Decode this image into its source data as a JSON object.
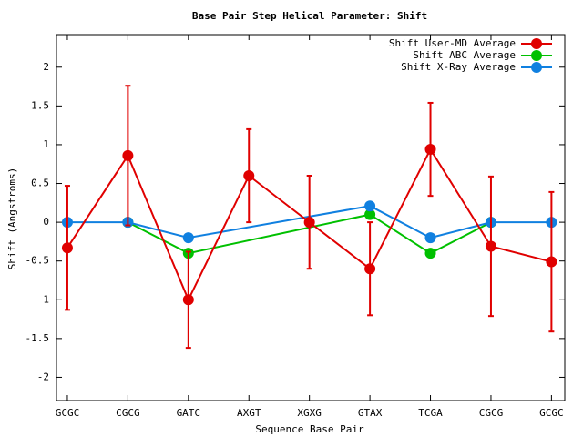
{
  "chart_data": {
    "type": "line",
    "title": "Base Pair Step Helical Parameter: Shift",
    "xlabel": "Sequence Base Pair",
    "ylabel": "Shift (Angstroms)",
    "xlim": [
      -0.18,
      8.22
    ],
    "xticks": [
      {
        "value": 0,
        "label": "GCGC"
      },
      {
        "value": 1,
        "label": "CGCG"
      },
      {
        "value": 2,
        "label": "GATC"
      },
      {
        "value": 3,
        "label": "AXGT"
      },
      {
        "value": 4,
        "label": "XGXG"
      },
      {
        "value": 5,
        "label": "GTAX"
      },
      {
        "value": 6,
        "label": "TCGA"
      },
      {
        "value": 7,
        "label": "CGCG"
      },
      {
        "value": 8,
        "label": "GCGC"
      }
    ],
    "ylim": [
      -2.3,
      2.42
    ],
    "yticks": [
      -2,
      -1.5,
      -1,
      -0.5,
      0,
      0.5,
      1,
      1.5,
      2
    ],
    "legend": "top-right",
    "series": [
      {
        "name": "Shift User-MD Average",
        "color": "#e00000",
        "x": [
          0,
          1,
          2,
          3,
          4,
          5,
          6,
          7,
          8
        ],
        "values": [
          -0.33,
          0.86,
          -1.0,
          0.6,
          0.0,
          -0.6,
          0.94,
          -0.31,
          -0.51
        ],
        "errors": [
          0.8,
          0.9,
          0.62,
          0.6,
          0.6,
          0.6,
          0.6,
          0.9,
          0.9
        ]
      },
      {
        "name": "Shift ABC Average",
        "color": "#00c000",
        "x": [
          1,
          2,
          5,
          6,
          7
        ],
        "values": [
          0,
          -0.4,
          0.1,
          -0.4,
          0
        ]
      },
      {
        "name": "Shift X-Ray Average",
        "color": "#1080e0",
        "x": [
          0,
          1,
          2,
          5,
          6,
          7,
          8
        ],
        "values": [
          0,
          0,
          -0.2,
          0.21,
          -0.2,
          0,
          0
        ]
      }
    ]
  }
}
